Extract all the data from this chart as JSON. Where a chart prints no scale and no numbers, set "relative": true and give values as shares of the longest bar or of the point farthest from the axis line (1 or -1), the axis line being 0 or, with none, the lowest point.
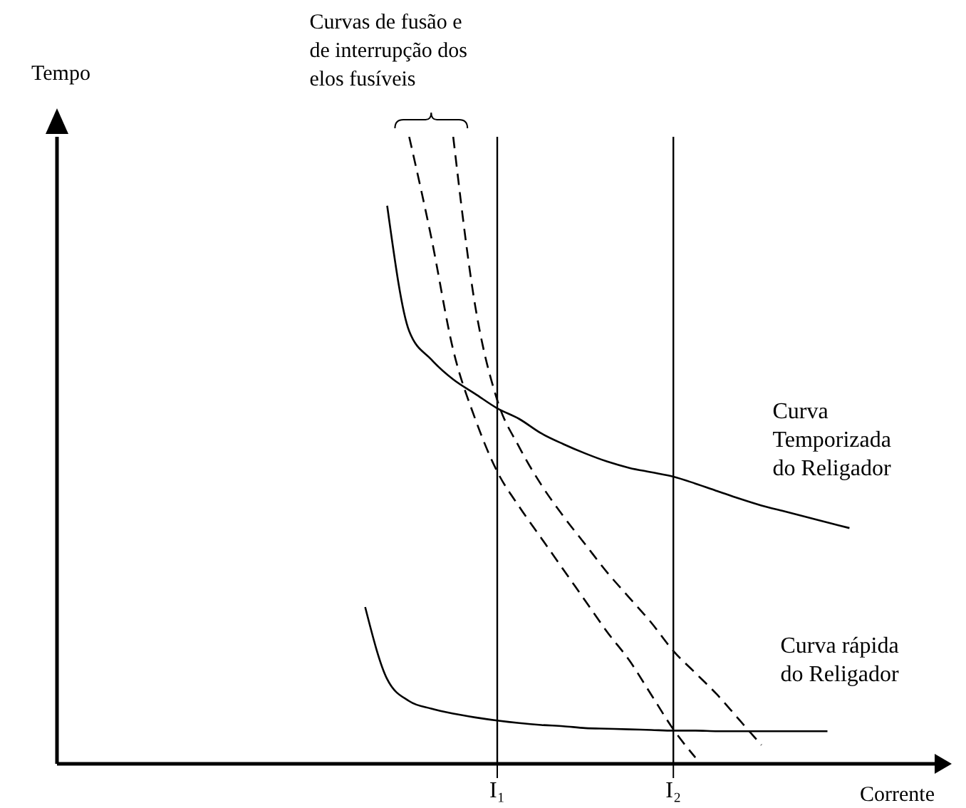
{
  "chart_data": {
    "type": "line",
    "relative": true,
    "xlabel": "Corrente",
    "ylabel": "Tempo",
    "categories": [
      null,
      null,
      null,
      null,
      null,
      null,
      null,
      null,
      null,
      null,
      null,
      null,
      null,
      null,
      null,
      null,
      null,
      null,
      null,
      null,
      "I₁",
      null,
      null,
      null,
      null,
      null,
      null,
      null,
      "I₂",
      null,
      null,
      null,
      null,
      null,
      null,
      null,
      null,
      null,
      null,
      null,
      null
    ],
    "annotations": [
      "Curvas de fusão e de interrupção dos elos fusíveis"
    ],
    "ref_lines": [
      {
        "axis": "x",
        "value": "I₁",
        "color": "#000000"
      },
      {
        "axis": "x",
        "value": "I₂",
        "color": "#000000"
      }
    ],
    "legend": false,
    "marker": "none",
    "series": [
      {
        "color": "#000000",
        "line_style": "dashed",
        "values": [
          null,
          null,
          null,
          null,
          null,
          null,
          null,
          null,
          null,
          null,
          null,
          null,
          null,
          null,
          null,
          null,
          1,
          0.84,
          0.66,
          0.55,
          0.466,
          0.41,
          0.36,
          0.31,
          0.26,
          0.21,
          0.165,
          0.11,
          0.055,
          0.01,
          null,
          null,
          null,
          null,
          null,
          null,
          null,
          null,
          null,
          null,
          null
        ]
      },
      {
        "color": "#000000",
        "line_style": "dashed",
        "values": [
          null,
          null,
          null,
          null,
          null,
          null,
          null,
          null,
          null,
          null,
          null,
          null,
          null,
          null,
          null,
          null,
          null,
          null,
          1,
          0.73,
          0.58,
          0.505,
          0.445,
          0.395,
          0.35,
          0.305,
          0.265,
          0.225,
          0.18,
          0.145,
          0.11,
          0.07,
          0.03,
          null,
          null,
          null,
          null,
          null,
          null,
          null,
          null
        ]
      },
      {
        "name": "Curva Temporizada do Religador",
        "color": "#000000",
        "line_style": "solid",
        "values": [
          null,
          null,
          null,
          null,
          null,
          null,
          null,
          null,
          null,
          null,
          null,
          null,
          null,
          null,
          null,
          0.89,
          0.69,
          0.645,
          0.613,
          0.59,
          0.567,
          0.55,
          0.527,
          0.51,
          0.495,
          0.482,
          0.472,
          0.465,
          0.458,
          0.447,
          0.435,
          0.423,
          0.412,
          0.403,
          0.394,
          0.385,
          0.376,
          null,
          null,
          null,
          null
        ]
      },
      {
        "name": "Curva rápida do Religador",
        "color": "#000000",
        "line_style": "solid",
        "values": [
          null,
          null,
          null,
          null,
          null,
          null,
          null,
          null,
          null,
          null,
          null,
          null,
          null,
          null,
          0.25,
          0.135,
          0.1,
          0.088,
          0.08,
          0.074,
          0.069,
          0.065,
          0.062,
          0.06,
          0.057,
          0.056,
          0.055,
          0.054,
          0.053,
          0.053,
          0.052,
          0.052,
          0.052,
          0.052,
          0.052,
          0.052,
          null,
          null,
          null,
          null,
          null
        ]
      }
    ]
  }
}
